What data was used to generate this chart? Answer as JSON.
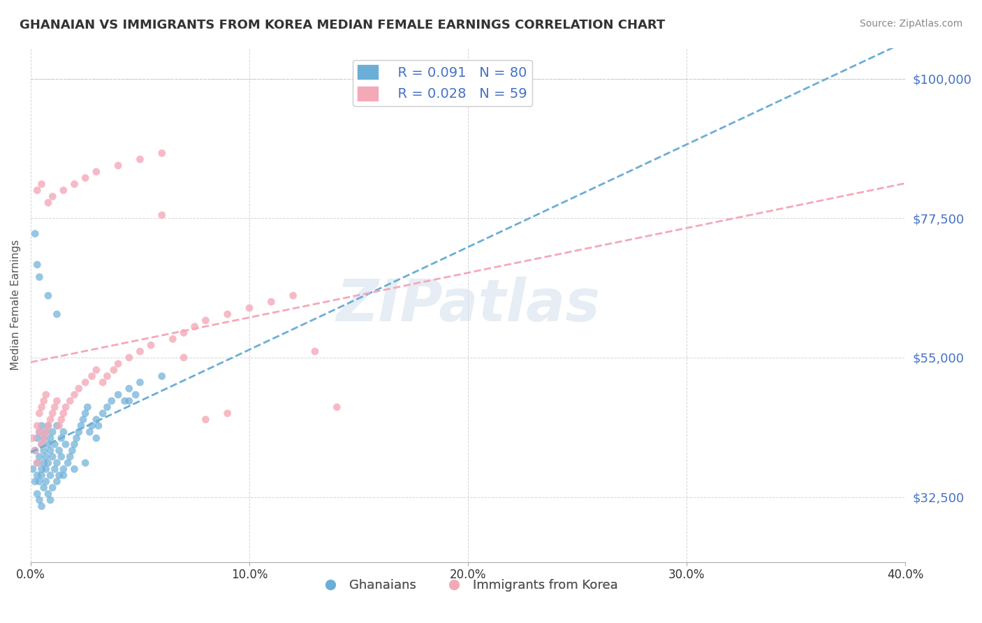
{
  "title": "GHANAIAN VS IMMIGRANTS FROM KOREA MEDIAN FEMALE EARNINGS CORRELATION CHART",
  "source": "Source: ZipAtlas.com",
  "xlabel": "",
  "ylabel": "Median Female Earnings",
  "xlim": [
    0.0,
    0.4
  ],
  "ylim": [
    22000,
    105000
  ],
  "yticks": [
    32500,
    55000,
    77500,
    100000
  ],
  "ytick_labels": [
    "$32,500",
    "$55,000",
    "$77,500",
    "$100,000"
  ],
  "xticks": [
    0.0,
    0.1,
    0.2,
    0.3,
    0.4
  ],
  "xtick_labels": [
    "0.0%",
    "10.0%",
    "20.0%",
    "30.0%",
    "40.0%"
  ],
  "blue_color": "#6baed6",
  "pink_color": "#f4a9b8",
  "blue_R": 0.091,
  "blue_N": 80,
  "pink_R": 0.028,
  "pink_N": 59,
  "watermark": "ZIPatlas",
  "legend_label_1": "Ghanaians",
  "legend_label_2": "Immigrants from Korea",
  "background_color": "#ffffff",
  "blue_scatter_x": [
    0.001,
    0.002,
    0.002,
    0.003,
    0.003,
    0.003,
    0.004,
    0.004,
    0.004,
    0.005,
    0.005,
    0.005,
    0.005,
    0.006,
    0.006,
    0.006,
    0.007,
    0.007,
    0.007,
    0.008,
    0.008,
    0.008,
    0.009,
    0.009,
    0.009,
    0.01,
    0.01,
    0.011,
    0.011,
    0.012,
    0.012,
    0.013,
    0.013,
    0.014,
    0.014,
    0.015,
    0.015,
    0.016,
    0.017,
    0.018,
    0.019,
    0.02,
    0.021,
    0.022,
    0.023,
    0.024,
    0.025,
    0.026,
    0.027,
    0.028,
    0.03,
    0.031,
    0.033,
    0.035,
    0.037,
    0.04,
    0.043,
    0.045,
    0.048,
    0.05,
    0.003,
    0.004,
    0.005,
    0.006,
    0.007,
    0.008,
    0.009,
    0.01,
    0.012,
    0.015,
    0.02,
    0.025,
    0.03,
    0.045,
    0.06,
    0.002,
    0.003,
    0.004,
    0.008,
    0.012
  ],
  "blue_scatter_y": [
    37000,
    35000,
    40000,
    38000,
    42000,
    36000,
    39000,
    43000,
    35000,
    41000,
    37000,
    44000,
    36000,
    40000,
    38000,
    42000,
    39000,
    43000,
    37000,
    41000,
    38000,
    44000,
    40000,
    36000,
    42000,
    39000,
    43000,
    37000,
    41000,
    38000,
    44000,
    40000,
    36000,
    42000,
    39000,
    43000,
    37000,
    41000,
    38000,
    39000,
    40000,
    41000,
    42000,
    43000,
    44000,
    45000,
    46000,
    47000,
    43000,
    44000,
    45000,
    44000,
    46000,
    47000,
    48000,
    49000,
    48000,
    50000,
    49000,
    51000,
    33000,
    32000,
    31000,
    34000,
    35000,
    33000,
    32000,
    34000,
    35000,
    36000,
    37000,
    38000,
    42000,
    48000,
    52000,
    75000,
    70000,
    68000,
    65000,
    62000
  ],
  "pink_scatter_x": [
    0.001,
    0.002,
    0.003,
    0.003,
    0.004,
    0.004,
    0.005,
    0.005,
    0.006,
    0.006,
    0.007,
    0.007,
    0.008,
    0.009,
    0.01,
    0.011,
    0.012,
    0.013,
    0.014,
    0.015,
    0.016,
    0.018,
    0.02,
    0.022,
    0.025,
    0.028,
    0.03,
    0.033,
    0.035,
    0.038,
    0.04,
    0.045,
    0.05,
    0.055,
    0.06,
    0.065,
    0.07,
    0.075,
    0.08,
    0.09,
    0.1,
    0.11,
    0.12,
    0.13,
    0.14,
    0.003,
    0.005,
    0.008,
    0.01,
    0.015,
    0.02,
    0.025,
    0.03,
    0.04,
    0.05,
    0.06,
    0.07,
    0.08,
    0.09
  ],
  "pink_scatter_y": [
    42000,
    40000,
    44000,
    38000,
    43000,
    46000,
    41000,
    47000,
    42000,
    48000,
    43000,
    49000,
    44000,
    45000,
    46000,
    47000,
    48000,
    44000,
    45000,
    46000,
    47000,
    48000,
    49000,
    50000,
    51000,
    52000,
    53000,
    51000,
    52000,
    53000,
    54000,
    55000,
    56000,
    57000,
    78000,
    58000,
    59000,
    60000,
    61000,
    62000,
    63000,
    64000,
    65000,
    56000,
    47000,
    82000,
    83000,
    80000,
    81000,
    82000,
    83000,
    84000,
    85000,
    86000,
    87000,
    88000,
    55000,
    45000,
    46000
  ]
}
